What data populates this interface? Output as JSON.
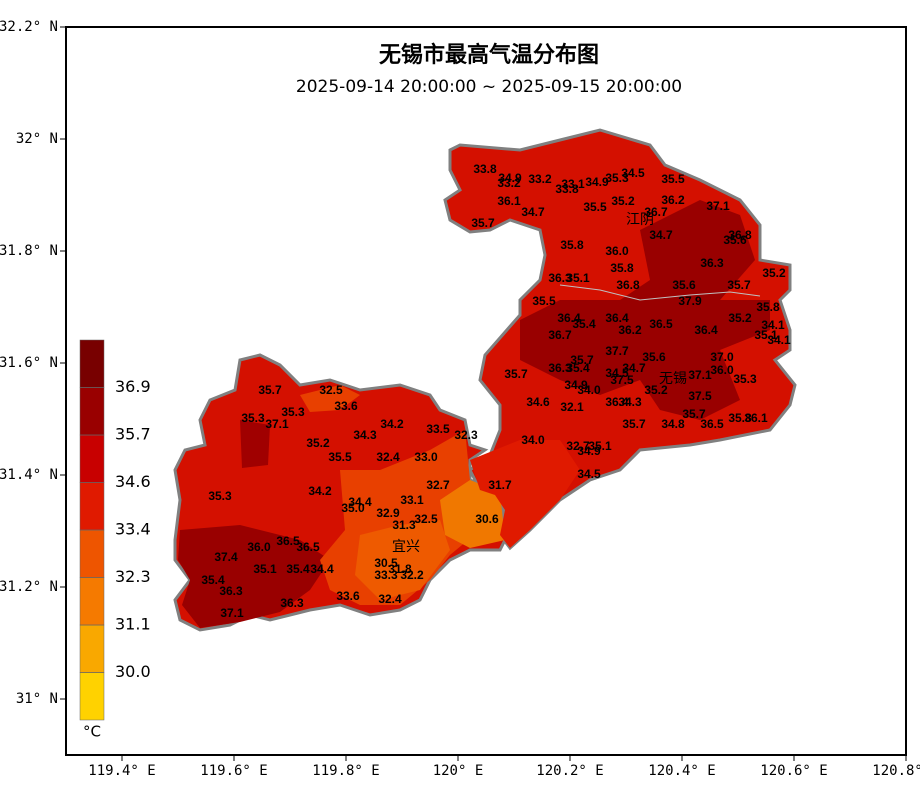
{
  "chart_data": {
    "type": "map",
    "title": "无锡市最高气温分布图",
    "subtitle": "2025-09-14 20:00:00 ~ 2025-09-15 20:00:00",
    "xlim": [
      119.3,
      120.8
    ],
    "ylim": [
      30.9,
      32.2
    ],
    "xticks": [
      {
        "value": 119.4,
        "label": "119.4° E"
      },
      {
        "value": 119.6,
        "label": "119.6° E"
      },
      {
        "value": 119.8,
        "label": "119.8° E"
      },
      {
        "value": 120,
        "label": "120° E"
      },
      {
        "value": 120.2,
        "label": "120.2° E"
      },
      {
        "value": 120.4,
        "label": "120.4° E"
      },
      {
        "value": 120.6,
        "label": "120.6° E"
      },
      {
        "value": 120.8,
        "label": "120.8° E"
      }
    ],
    "yticks": [
      {
        "value": 31,
        "label": "31° N"
      },
      {
        "value": 31.2,
        "label": "31.2° N"
      },
      {
        "value": 31.4,
        "label": "31.4° N"
      },
      {
        "value": 31.6,
        "label": "31.6° N"
      },
      {
        "value": 31.8,
        "label": "31.8° N"
      },
      {
        "value": 32,
        "label": "32° N"
      },
      {
        "value": 32.2,
        "label": "32.2° N"
      }
    ],
    "colorbar": {
      "unit": "°C",
      "colors": [
        "#ffd200",
        "#f9a800",
        "#f57a00",
        "#ee5500",
        "#e01a00",
        "#c80000",
        "#990000",
        "#780000"
      ],
      "ticks": [
        {
          "value": 30,
          "label": "30.0"
        },
        31.1,
        32.3,
        33.4,
        34.6,
        35.7,
        36.9
      ]
    },
    "cities": [
      "江阴",
      "无锡",
      "宜兴"
    ],
    "stations": {
      "values": [
        33.8,
        34.9,
        33.2,
        33.2,
        33.1,
        33.8,
        34.9,
        35.3,
        34.5,
        35.5,
        36.1,
        34.7,
        35.7,
        35.5,
        35.2,
        36.2,
        36.7,
        37.1,
        34.7,
        35.8,
        36,
        36.8,
        35.6,
        36.3,
        35.8,
        36.3,
        35.1,
        36.8,
        35.6,
        35.2,
        35.7,
        35.5,
        37.9,
        35.8,
        36.4,
        35.4,
        36.4,
        35.2,
        36.5,
        36.2,
        36.4,
        34.1,
        36.7,
        35.1,
        34.1,
        37.7,
        35.6,
        37,
        35.7,
        36.3,
        35.4,
        34.7,
        36,
        34.5,
        37.1,
        35.7,
        37.5,
        35.3,
        34.9,
        34,
        35.2,
        37.5,
        34.6,
        32.1,
        36.4,
        34.3,
        35.7,
        34,
        35.7,
        34.8,
        36.5,
        35.8,
        36.1,
        32.7,
        35.1,
        34.9,
        34.5,
        35.7,
        32.5,
        33.6,
        35.3,
        35.3,
        37.1,
        34.2,
        34.3,
        33.5,
        32.3,
        35.2,
        35.5,
        32.4,
        33,
        32.7,
        31.7,
        35.3,
        34.2,
        34.4,
        35,
        33.1,
        32.9,
        32.5,
        30.6,
        31.3,
        36.5,
        36,
        36.5,
        37.4,
        30.5,
        31.8,
        33.3,
        32.2,
        35.1,
        35.4,
        34.4,
        35.4,
        36.3,
        33.6,
        32.4,
        36.3,
        37.1
      ],
      "value_labels": [
        "33.8",
        "34.9",
        "33.2",
        "33.2",
        "33.1",
        "33.8",
        "34.9",
        "35.3",
        "34.5",
        "35.5",
        "36.1",
        "34.7",
        "35.7",
        "35.5",
        "35.2",
        "36.2",
        "36.7",
        "37.1",
        "34.7",
        "35.8",
        "36.0",
        "36.8",
        "35.6",
        "36.3",
        "35.8",
        "36.3",
        "35.1",
        "36.8",
        "35.6",
        "35.2",
        "35.7",
        "35.5",
        "37.9",
        "35.8",
        "36.4",
        "35.4",
        "36.4",
        "35.2",
        "36.5",
        "36.2",
        "36.4",
        "34.1",
        "36.7",
        "35.1",
        "34.1",
        "37.7",
        "35.6",
        "37.0",
        "35.7",
        "36.3",
        "35.4",
        "34.7",
        "36.0",
        "34.5",
        "37.1",
        "35.7",
        "37.5",
        "35.3",
        "34.9",
        "34.0",
        "35.2",
        "37.5",
        "34.6",
        "32.1",
        "36.4",
        "34.3",
        "35.7",
        "34.0",
        "35.7",
        "34.8",
        "36.5",
        "35.8",
        "36.1",
        "32.7",
        "35.1",
        "34.9",
        "34.5",
        "35.7",
        "32.5",
        "33.6",
        "35.3",
        "35.3",
        "37.1",
        "34.2",
        "34.3",
        "33.5",
        "32.3",
        "35.2",
        "35.5",
        "32.4",
        "33.0",
        "32.7",
        "31.7",
        "35.3",
        "34.2",
        "34.4",
        "35.0",
        "33.1",
        "32.9",
        "32.5",
        "30.6",
        "31.3",
        "36.5",
        "36.0",
        "36.5",
        "37.4",
        "30.5",
        "31.8",
        "33.3",
        "32.2",
        "35.1",
        "35.4",
        "34.4",
        "35.4",
        "36.3",
        "33.6",
        "32.4",
        "36.3",
        "37.1"
      ]
    }
  }
}
